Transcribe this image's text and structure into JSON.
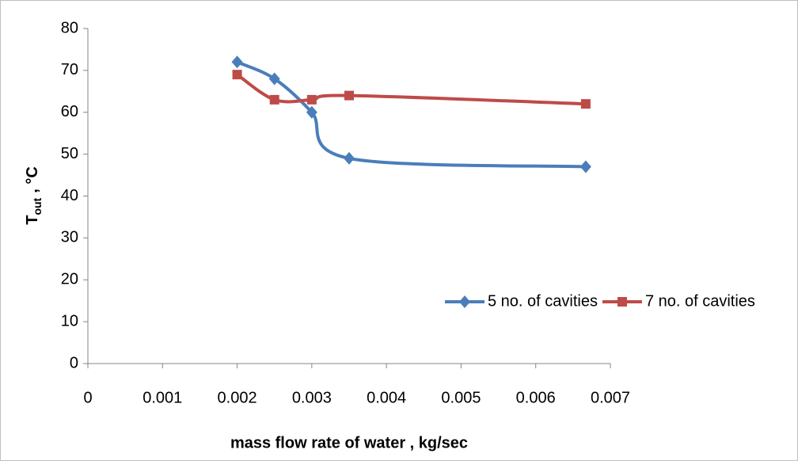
{
  "chart_data": {
    "type": "line",
    "x_label": "mass flow rate of water , kg/sec",
    "y_label": {
      "main": "T",
      "sub": "out",
      "unit": ", °C"
    },
    "x": [
      0.002,
      0.0025,
      0.003,
      0.0035,
      0.00667
    ],
    "series": [
      {
        "name": "5 no. of cavities",
        "color": "#4a7ebb",
        "marker": "diamond",
        "values": [
          72,
          68,
          60,
          49,
          47
        ]
      },
      {
        "name": "7 no. of cavities",
        "color": "#be4b48",
        "marker": "square",
        "values": [
          69,
          63,
          63,
          64,
          62
        ]
      }
    ],
    "xlim": [
      0,
      0.007
    ],
    "xticks": [
      0,
      0.001,
      0.002,
      0.003,
      0.004,
      0.005,
      0.006,
      0.007
    ],
    "ylim": [
      0,
      80
    ],
    "yticks": [
      0,
      10,
      20,
      30,
      40,
      50,
      60,
      70,
      80
    ],
    "smooth": true,
    "grid": false,
    "legend": "right"
  }
}
